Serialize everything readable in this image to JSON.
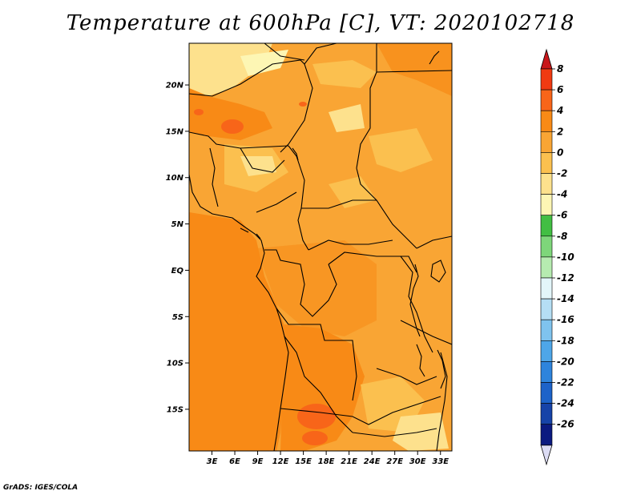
{
  "title": "Temperature at 600hPa [C], VT: 2020102718",
  "credit": "GrADS: IGES/COLA",
  "map": {
    "lat_labels": [
      "20N",
      "15N",
      "10N",
      "5N",
      "EQ",
      "5S",
      "10S",
      "15S"
    ],
    "lon_labels": [
      "3E",
      "6E",
      "9E",
      "12E",
      "15E",
      "18E",
      "21E",
      "24E",
      "27E",
      "30E",
      "33E"
    ],
    "lat_range": [
      -19.5,
      24.5
    ],
    "lon_range": [
      0,
      34.5
    ]
  },
  "colorbar": {
    "labels": [
      "8",
      "6",
      "4",
      "2",
      "0",
      "-2",
      "-4",
      "-6",
      "-8",
      "-10",
      "-12",
      "-14",
      "-16",
      "-18",
      "-20",
      "-22",
      "-24",
      "-26"
    ],
    "colors": [
      "#f03a12",
      "#f86519",
      "#f88a16",
      "#f9a534",
      "#fbc04f",
      "#fde18d",
      "#fdf6b4",
      "#42be43",
      "#7ed67a",
      "#b6ebb0",
      "#e3f6fa",
      "#b5def4",
      "#7fc3ee",
      "#4ea6e8",
      "#2e84dc",
      "#1d63c9",
      "#1643a8",
      "#0b1a80"
    ],
    "top_arrow_color": "#c8171a",
    "bottom_arrow_color": "#dcdcf4"
  }
}
